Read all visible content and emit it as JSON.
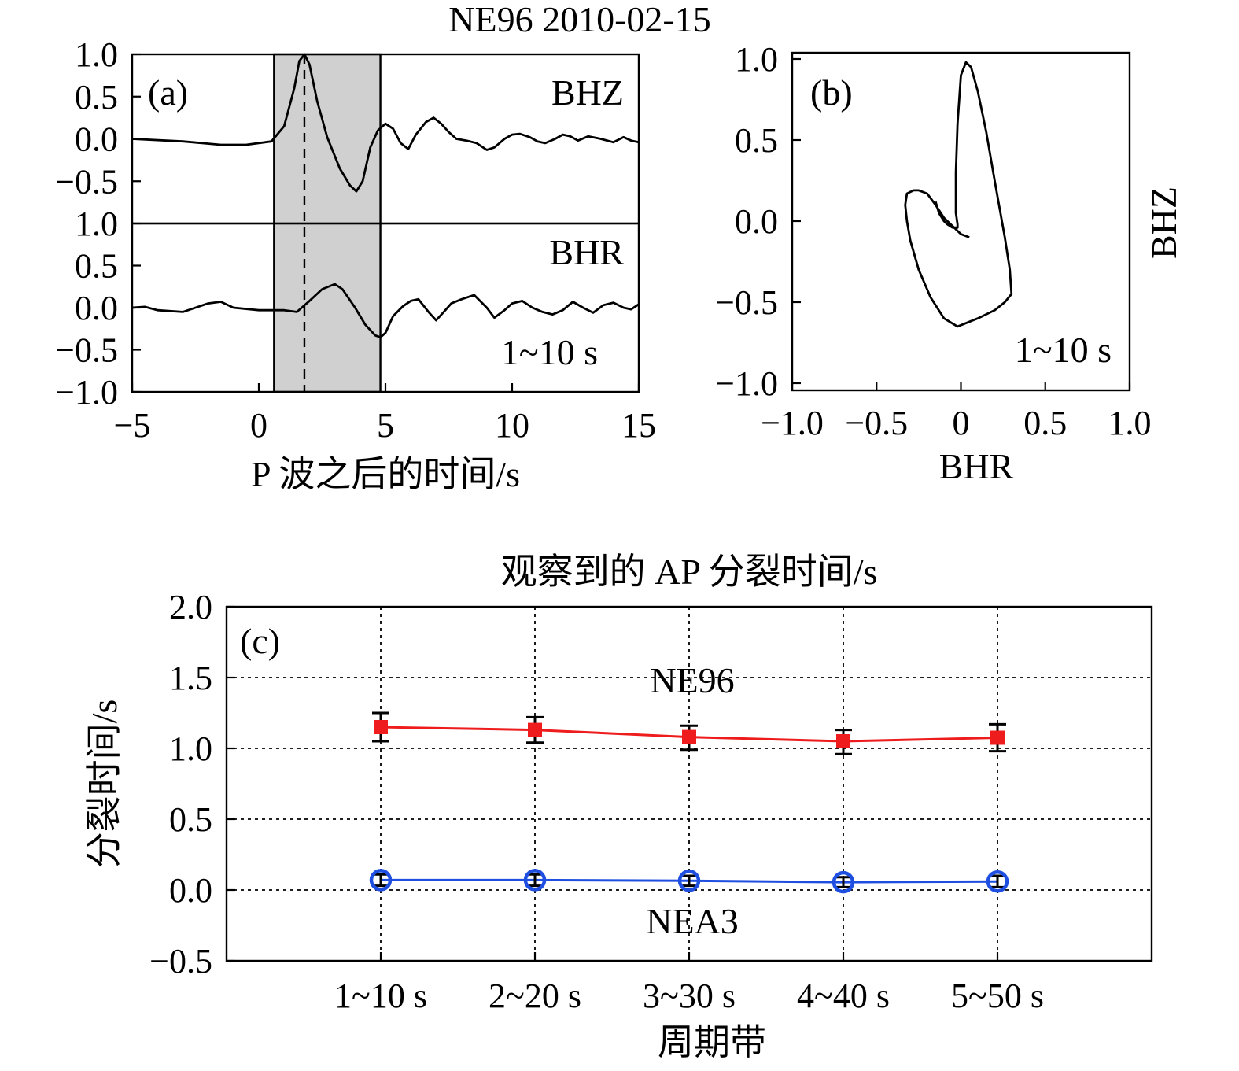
{
  "figure_title": "NE96  2010-02-15",
  "chart_data": [
    {
      "panel": "(a)",
      "type": "line",
      "xlabel": "P 波之后的时间/s",
      "xlim": [
        -5,
        15
      ],
      "x_ticks": [
        "−5",
        "0",
        "5",
        "10",
        "15"
      ],
      "x_tick_values": [
        -5,
        0,
        5,
        10,
        15
      ],
      "ylim": [
        -1.0,
        1.0
      ],
      "shaded_window": [
        0.6,
        4.8
      ],
      "dashed_marker_x": 1.8,
      "annotation": "1~10 s",
      "subplots": [
        {
          "name": "BHZ",
          "y_ticks": [
            "1.0",
            "0.5",
            "0.0",
            "−0.5"
          ],
          "y_tick_values": [
            1.0,
            0.5,
            0.0,
            -0.5
          ],
          "x": [
            -5,
            -3,
            -1.5,
            -0.5,
            0.5,
            1.0,
            1.4,
            1.6,
            1.8,
            2.0,
            2.3,
            2.7,
            3.2,
            3.6,
            3.85,
            4.1,
            4.4,
            4.7,
            5.0,
            5.3,
            5.6,
            5.9,
            6.2,
            6.6,
            6.9,
            7.2,
            7.5,
            7.8,
            8.2,
            8.6,
            9.0,
            9.3,
            9.7,
            10.0,
            10.3,
            10.7,
            11.0,
            11.3,
            11.7,
            12.0,
            12.3,
            12.6,
            13.0,
            13.5,
            14.0,
            14.4,
            14.7,
            15.0
          ],
          "y": [
            0.0,
            -0.03,
            -0.07,
            -0.07,
            -0.03,
            0.15,
            0.6,
            0.92,
            1.0,
            0.88,
            0.45,
            0.02,
            -0.35,
            -0.55,
            -0.62,
            -0.5,
            -0.1,
            0.1,
            0.18,
            0.12,
            -0.05,
            -0.12,
            0.05,
            0.2,
            0.25,
            0.18,
            0.08,
            0.0,
            -0.02,
            -0.05,
            -0.13,
            -0.1,
            0.0,
            0.05,
            0.06,
            0.02,
            -0.03,
            -0.05,
            0.0,
            0.05,
            0.03,
            -0.02,
            0.03,
            0.0,
            -0.04,
            0.02,
            -0.02,
            -0.04
          ]
        },
        {
          "name": "BHR",
          "y_ticks": [
            "1.0",
            "0.5",
            "0.0",
            "−0.5",
            "−1.0"
          ],
          "y_tick_values": [
            1.0,
            0.5,
            0.0,
            -0.5,
            -1.0
          ],
          "x": [
            -5,
            -4.5,
            -4.0,
            -3.0,
            -2.0,
            -1.5,
            -1.0,
            0.0,
            0.5,
            1.0,
            1.5,
            2.0,
            2.5,
            3.0,
            3.3,
            3.8,
            4.2,
            4.6,
            4.8,
            5.0,
            5.3,
            5.7,
            6.0,
            6.3,
            6.7,
            7.0,
            7.3,
            7.6,
            8.0,
            8.5,
            9.0,
            9.3,
            9.7,
            10.0,
            10.4,
            10.8,
            11.2,
            11.6,
            12.0,
            12.4,
            12.8,
            13.2,
            13.6,
            14.0,
            14.4,
            14.7,
            15.0
          ],
          "y": [
            0.0,
            0.01,
            -0.03,
            -0.05,
            0.05,
            0.07,
            0.0,
            -0.03,
            -0.03,
            -0.03,
            -0.05,
            0.08,
            0.22,
            0.28,
            0.22,
            0.0,
            -0.2,
            -0.33,
            -0.35,
            -0.3,
            -0.1,
            0.02,
            0.08,
            0.1,
            -0.05,
            -0.15,
            -0.05,
            0.05,
            0.1,
            0.15,
            0.0,
            -0.12,
            -0.03,
            0.05,
            0.08,
            0.0,
            -0.05,
            -0.08,
            -0.03,
            0.07,
            0.0,
            -0.06,
            0.03,
            0.06,
            0.0,
            -0.02,
            0.04
          ]
        }
      ]
    },
    {
      "panel": "(b)",
      "type": "line",
      "xlabel": "BHR",
      "ylabel": "BHZ",
      "xlim": [
        -1.0,
        1.0
      ],
      "ylim": [
        -1.0,
        1.0
      ],
      "x_ticks": [
        "−1.0",
        "−0.5",
        "0",
        "0.5",
        "1.0"
      ],
      "x_tick_values": [
        -1.0,
        -0.5,
        0,
        0.5,
        1.0
      ],
      "y_ticks": [
        "1.0",
        "0.5",
        "0.0",
        "−0.5",
        "−1.0"
      ],
      "y_tick_values": [
        1.0,
        0.5,
        0.0,
        -0.5,
        -1.0
      ],
      "annotation": "1~10 s",
      "x": [
        0.05,
        0.0,
        -0.05,
        -0.1,
        -0.15,
        -0.2,
        -0.25,
        -0.28,
        -0.3,
        -0.32,
        -0.33,
        -0.32,
        -0.3,
        -0.25,
        -0.18,
        -0.1,
        -0.02,
        0.1,
        0.2,
        0.26,
        0.3,
        0.29,
        0.26,
        0.2,
        0.15,
        0.1,
        0.06,
        0.03,
        0.0,
        -0.02,
        -0.03,
        -0.03,
        -0.02,
        -0.02,
        -0.05,
        -0.08,
        -0.1,
        -0.13,
        -0.15
      ],
      "y": [
        -0.1,
        -0.08,
        -0.03,
        0.02,
        0.1,
        0.17,
        0.19,
        0.19,
        0.18,
        0.17,
        0.1,
        0.0,
        -0.12,
        -0.3,
        -0.47,
        -0.6,
        -0.65,
        -0.6,
        -0.55,
        -0.5,
        -0.45,
        -0.3,
        -0.1,
        0.25,
        0.55,
        0.8,
        0.95,
        0.98,
        0.9,
        0.6,
        0.3,
        0.05,
        -0.02,
        -0.04,
        -0.04,
        -0.02,
        0.0,
        0.05,
        0.12
      ]
    },
    {
      "panel": "(c)",
      "type": "line",
      "title": "观察到的 AP 分裂时间/s",
      "xlabel": "周期带",
      "ylabel": "分裂时间/s",
      "categories": [
        "1~10 s",
        "2~20 s",
        "3~30 s",
        "4~40 s",
        "5~50 s"
      ],
      "ylim": [
        -0.5,
        2.0
      ],
      "y_ticks": [
        "2.0",
        "1.5",
        "1.0",
        "0.5",
        "0.0",
        "−0.5"
      ],
      "y_tick_values": [
        2.0,
        1.5,
        1.0,
        0.5,
        0.0,
        -0.5
      ],
      "grid": true,
      "series": [
        {
          "name": "NE96",
          "color": "#ee1c1c",
          "marker": "square",
          "values": [
            1.15,
            1.13,
            1.08,
            1.05,
            1.075
          ],
          "err_low": [
            1.05,
            1.04,
            0.99,
            0.96,
            0.98
          ],
          "err_high": [
            1.25,
            1.22,
            1.16,
            1.13,
            1.17
          ]
        },
        {
          "name": "NEA3",
          "color": "#1f4fe0",
          "marker": "circle",
          "values": [
            0.07,
            0.07,
            0.065,
            0.055,
            0.06
          ],
          "err_low": [
            0.03,
            0.03,
            0.03,
            0.02,
            0.02
          ],
          "err_high": [
            0.11,
            0.11,
            0.1,
            0.09,
            0.1
          ]
        }
      ]
    }
  ]
}
